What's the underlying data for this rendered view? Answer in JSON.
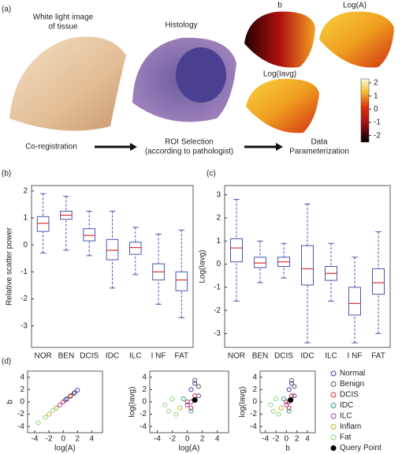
{
  "panel_a": {
    "label": "(a)",
    "white_light_label": [
      "White light image",
      "of tissue"
    ],
    "histology_label": "Histology",
    "map_b_label": "b",
    "map_a_label": "Log(A)",
    "map_iavg_label": "Log(Iavg)",
    "colorbar": {
      "lim": [
        -2.5,
        2.3
      ],
      "ticks": [
        2,
        1,
        0,
        -1,
        -2
      ]
    },
    "step1": "Co-registration",
    "step2": [
      "ROI Selection",
      "(according to pathologist)"
    ],
    "step3": [
      "Data",
      "Parameterization"
    ]
  },
  "legend": [
    {
      "name": "Normal",
      "color": "#3a3aa8"
    },
    {
      "name": "Benign",
      "color": "#555555"
    },
    {
      "name": "DCIS",
      "color": "#e0282a"
    },
    {
      "name": "IDC",
      "color": "#2a9d8f"
    },
    {
      "name": "ILC",
      "color": "#9b3fa8"
    },
    {
      "name": "Inflam",
      "color": "#c8b020"
    },
    {
      "name": "Fat",
      "color": "#8fd07a"
    },
    {
      "name": "Query Point",
      "color": "#000000"
    }
  ],
  "chart_data": [
    {
      "type": "box",
      "panel": "(b)",
      "ylabel": "Relative scatter power",
      "categories": [
        "NOR",
        "BEN",
        "DCIS",
        "IDC",
        "ILC",
        "I NF",
        "FAT"
      ],
      "color": "#4a55b0",
      "median_color": "#e03030",
      "whisker_low": [
        -0.3,
        -0.2,
        -0.4,
        -1.6,
        -1.1,
        -2.2,
        -2.7
      ],
      "q1": [
        0.5,
        0.95,
        0.15,
        -0.55,
        -0.35,
        -1.3,
        -1.7
      ],
      "median": [
        0.8,
        1.1,
        0.35,
        -0.2,
        -0.1,
        -1.0,
        -1.3
      ],
      "q3": [
        1.05,
        1.25,
        0.6,
        0.2,
        0.1,
        -0.7,
        -1.0
      ],
      "whisker_high": [
        1.9,
        1.8,
        1.25,
        1.25,
        0.65,
        0.4,
        0.55
      ],
      "ylim": [
        -3.8,
        2.2
      ],
      "yticks": [
        2,
        1,
        0,
        -1,
        -2,
        -3
      ]
    },
    {
      "type": "box",
      "panel": "(c)",
      "ylabel": "Log(Iavg)",
      "categories": [
        "NOR",
        "BEN",
        "DCIS",
        "IDC",
        "ILC",
        "I NF",
        "FAT"
      ],
      "color": "#4a55b0",
      "median_color": "#e03030",
      "whisker_low": [
        -1.6,
        -0.8,
        -0.6,
        -3.4,
        -1.6,
        -3.4,
        -3.0
      ],
      "q1": [
        0.1,
        -0.15,
        -0.1,
        -0.9,
        -0.7,
        -2.2,
        -1.3
      ],
      "median": [
        0.7,
        0.05,
        0.1,
        -0.2,
        -0.4,
        -1.7,
        -0.8
      ],
      "q3": [
        1.1,
        0.3,
        0.3,
        0.8,
        -0.1,
        -1.0,
        -0.2
      ],
      "whisker_high": [
        2.8,
        1.0,
        0.9,
        2.6,
        0.9,
        0.3,
        1.4
      ],
      "ylim": [
        -3.6,
        3.4
      ],
      "yticks": [
        3,
        2,
        1,
        0,
        -1,
        -2,
        -3
      ]
    },
    {
      "type": "scatter",
      "panel": "(d)",
      "xlabel": "log(A)",
      "ylabel": "b",
      "xlim": [
        -5,
        5.5
      ],
      "ylim": [
        -5,
        5
      ],
      "xticks": [
        -4,
        -2,
        0,
        2,
        4
      ],
      "yticks": [
        4,
        2,
        0,
        -2,
        -4
      ],
      "series": [
        {
          "x": [
            0.5,
            1.5,
            2
          ],
          "values": [
            0.5,
            1.4,
            1.9
          ]
        },
        {
          "x": [
            1,
            1.6
          ],
          "values": [
            1,
            1.5
          ]
        },
        {
          "x": [
            0,
            1
          ],
          "values": [
            0,
            0.9
          ]
        },
        {
          "x": [
            -1,
            0.5
          ],
          "values": [
            -1,
            0.4
          ]
        },
        {
          "x": [
            -0.5,
            0.3
          ],
          "values": [
            -0.5,
            0.3
          ]
        },
        {
          "x": [
            -2,
            -1
          ],
          "values": [
            -2,
            -1
          ]
        },
        {
          "x": [
            -3.5,
            -2.5,
            -1.5
          ],
          "values": [
            -3.4,
            -2.5,
            -1.4
          ]
        }
      ]
    },
    {
      "type": "scatter",
      "xlabel": "log(A)",
      "ylabel": "log(Iavg)",
      "xlim": [
        -5,
        5.5
      ],
      "ylim": [
        -5,
        5
      ],
      "xticks": [
        -4,
        -2,
        0,
        2,
        4
      ],
      "yticks": [
        4,
        2,
        0,
        -2,
        -4
      ],
      "series": [
        {
          "x": [
            0.5,
            1,
            1.5
          ],
          "values": [
            2,
            3,
            1
          ]
        },
        {
          "x": [
            1,
            1.5
          ],
          "values": [
            3.5,
            2.5
          ]
        },
        {
          "x": [
            0,
            0.5,
            1
          ],
          "values": [
            0,
            -1,
            1
          ]
        },
        {
          "x": [
            -0.5,
            0.5
          ],
          "values": [
            0.5,
            -1.5
          ]
        },
        {
          "x": [
            0,
            0.5
          ],
          "values": [
            -0.5,
            0
          ]
        },
        {
          "x": [
            -1
          ],
          "values": [
            -1
          ]
        },
        {
          "x": [
            -3,
            -2,
            -1.5,
            -2.5
          ],
          "values": [
            -0.5,
            0.5,
            -2,
            -1.5
          ]
        },
        {
          "x": [
            1
          ],
          "values": [
            0.3
          ]
        }
      ]
    },
    {
      "type": "scatter",
      "xlabel": "b",
      "ylabel": "log(Iavg)",
      "xlim": [
        -5,
        5.5
      ],
      "ylim": [
        -5,
        5
      ],
      "xticks": [
        -4,
        -2,
        0,
        2,
        4
      ],
      "yticks": [
        4,
        2,
        0,
        -2,
        -4
      ],
      "series": [
        {
          "x": [
            0.5,
            1,
            1.5
          ],
          "values": [
            2,
            3,
            1
          ]
        },
        {
          "x": [
            1,
            1.5
          ],
          "values": [
            3.5,
            2.5
          ]
        },
        {
          "x": [
            0,
            0.5,
            1
          ],
          "values": [
            0,
            -1,
            1
          ]
        },
        {
          "x": [
            -0.5,
            0.5
          ],
          "values": [
            0.5,
            -1.5
          ]
        },
        {
          "x": [
            0,
            0.5
          ],
          "values": [
            -0.5,
            0
          ]
        },
        {
          "x": [
            -1
          ],
          "values": [
            -1
          ]
        },
        {
          "x": [
            -3,
            -2,
            -1.5,
            -2.5
          ],
          "values": [
            -0.5,
            0.5,
            -2,
            -1.5
          ]
        },
        {
          "x": [
            0.8
          ],
          "values": [
            0.3
          ]
        }
      ]
    }
  ]
}
